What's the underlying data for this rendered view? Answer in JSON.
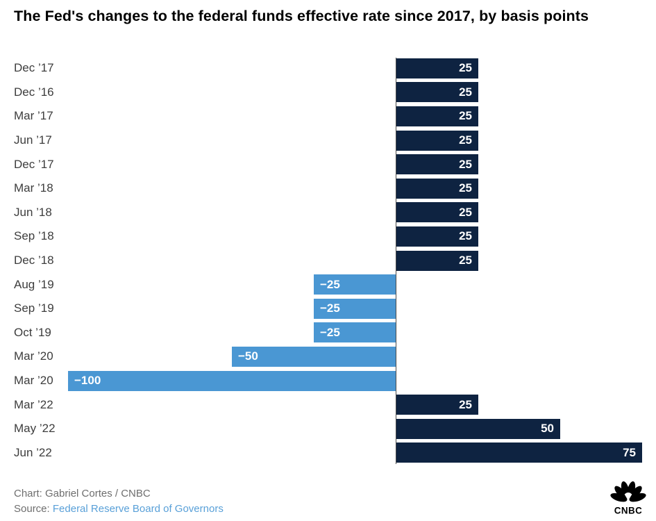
{
  "title": "The Fed's changes to the federal funds effective rate since 2017, by basis points",
  "footer": {
    "credit": "Chart: Gabriel Cortes / CNBC",
    "source_label": "Source: ",
    "source_link": "Federal Reserve Board of Governors",
    "logo_text": "CNBC"
  },
  "colors": {
    "positive_bar": "#0e2341",
    "negative_bar": "#4a97d3",
    "category_label": "#3d3d3d",
    "value_label": "#ffffff",
    "credit_text": "#6e6e6e",
    "source_link": "#59a0d8",
    "baseline": "#4a4a4a"
  },
  "chart_data": {
    "type": "bar",
    "orientation": "horizontal",
    "unit": "basis points",
    "title": "The Fed's changes to the federal funds effective rate since 2017, by basis points",
    "xlabel": "",
    "ylabel": "",
    "xlim": [
      -100,
      79
    ],
    "grid": false,
    "legend": false,
    "categories": [
      "Dec ’17",
      "Dec ’16",
      "Mar ’17",
      "Jun ’17",
      "Dec ’17",
      "Mar ’18",
      "Jun ’18",
      "Sep ’18",
      "Dec ’18",
      "Aug ’19",
      "Sep ’19",
      "Oct ’19",
      "Mar ’20",
      "Mar ’20",
      "Mar ’22",
      "May ’22",
      "Jun ’22"
    ],
    "values": [
      25,
      25,
      25,
      25,
      25,
      25,
      25,
      25,
      25,
      -25,
      -25,
      -25,
      -50,
      -100,
      25,
      50,
      75
    ],
    "value_labels": [
      "25",
      "25",
      "25",
      "25",
      "25",
      "25",
      "25",
      "25",
      "25",
      "−25",
      "−25",
      "−25",
      "−50",
      "−100",
      "25",
      "50",
      "75"
    ],
    "bar_color_positive": "#0e2341",
    "bar_color_negative": "#4a97d3",
    "value_label_position": "inside-outer-end"
  }
}
